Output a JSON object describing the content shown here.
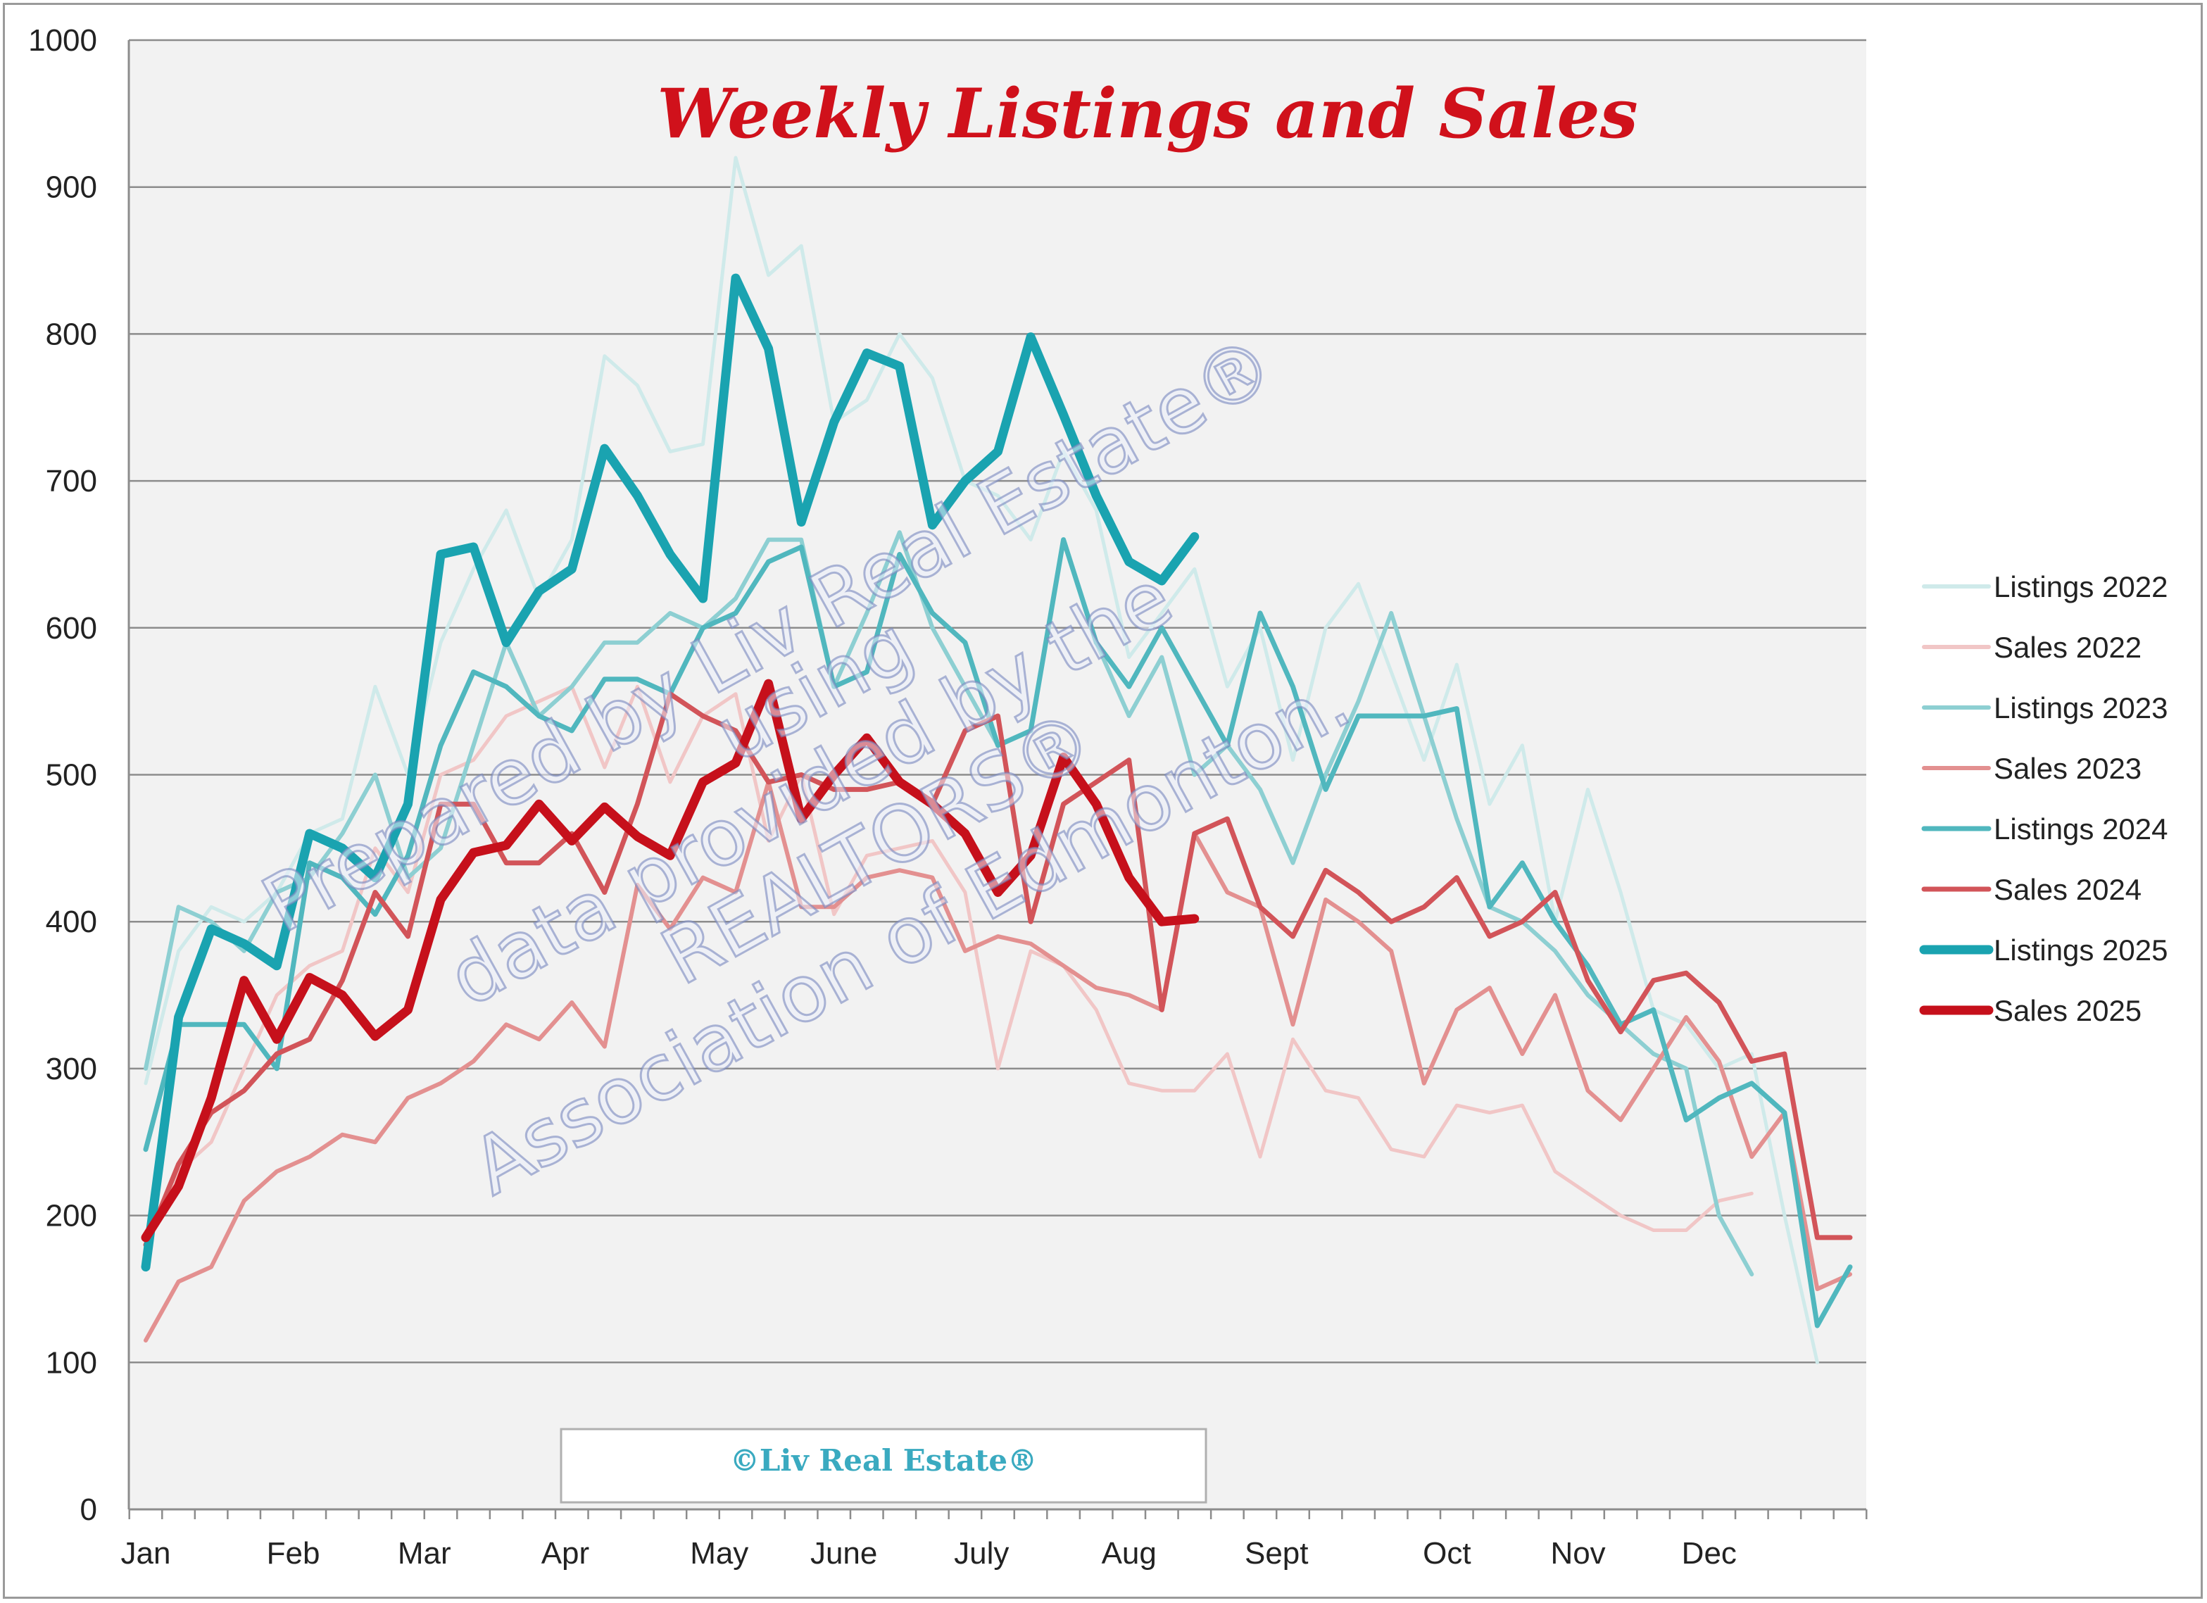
{
  "chart_data": {
    "type": "line",
    "title": "Weekly Listings and Sales",
    "ylim": [
      0,
      1000
    ],
    "yticks": [
      "0",
      "100",
      "200",
      "300",
      "400",
      "500",
      "600",
      "700",
      "800",
      "900",
      "1000"
    ],
    "grid": true,
    "legend_position": "right",
    "weeks": 53,
    "month_labels": [
      {
        "label": "Jan",
        "week": 1
      },
      {
        "label": "Feb",
        "week": 5.5
      },
      {
        "label": "Mar",
        "week": 9.5
      },
      {
        "label": "Apr",
        "week": 13.8
      },
      {
        "label": "May",
        "week": 18.5
      },
      {
        "label": "June",
        "week": 22.3
      },
      {
        "label": "July",
        "week": 26.5
      },
      {
        "label": "Aug",
        "week": 31
      },
      {
        "label": "Sept",
        "week": 35.5
      },
      {
        "label": "Oct",
        "week": 40.7
      },
      {
        "label": "Nov",
        "week": 44.7
      },
      {
        "label": "Dec",
        "week": 48.7
      }
    ],
    "series": [
      {
        "name": "Listings 2022",
        "color": "#cfeaea",
        "width": 5,
        "values": [
          290,
          380,
          410,
          400,
          420,
          460,
          470,
          560,
          500,
          590,
          640,
          680,
          620,
          660,
          785,
          765,
          720,
          725,
          920,
          840,
          860,
          740,
          755,
          800,
          770,
          700,
          690,
          660,
          720,
          680,
          580,
          610,
          640,
          560,
          600,
          510,
          600,
          630,
          570,
          510,
          575,
          480,
          520,
          400,
          490,
          420,
          340,
          330,
          300,
          310,
          200,
          100,
          null
        ]
      },
      {
        "name": "Sales 2022",
        "color": "#f1c6c6",
        "width": 5,
        "values": [
          185,
          230,
          250,
          300,
          350,
          370,
          380,
          450,
          420,
          500,
          510,
          540,
          550,
          560,
          505,
          560,
          495,
          540,
          555,
          455,
          500,
          405,
          445,
          450,
          455,
          420,
          300,
          380,
          370,
          340,
          290,
          285,
          285,
          310,
          240,
          320,
          285,
          280,
          245,
          240,
          275,
          270,
          275,
          230,
          215,
          200,
          190,
          190,
          210,
          215,
          null,
          null,
          null
        ]
      },
      {
        "name": "Listings 2023",
        "color": "#8dcfd2",
        "width": 6,
        "values": [
          300,
          410,
          400,
          380,
          420,
          430,
          460,
          500,
          430,
          450,
          520,
          590,
          540,
          560,
          590,
          590,
          610,
          600,
          620,
          660,
          660,
          560,
          610,
          665,
          600,
          560,
          520,
          530,
          660,
          590,
          540,
          580,
          500,
          520,
          490,
          440,
          500,
          550,
          610,
          540,
          470,
          410,
          400,
          380,
          350,
          330,
          310,
          300,
          200,
          160,
          null,
          null,
          null
        ]
      },
      {
        "name": "Sales 2023",
        "color": "#e39090",
        "width": 6,
        "values": [
          115,
          155,
          165,
          210,
          230,
          240,
          255,
          250,
          280,
          290,
          305,
          330,
          320,
          345,
          315,
          425,
          395,
          430,
          420,
          495,
          410,
          410,
          430,
          435,
          430,
          380,
          390,
          385,
          370,
          355,
          350,
          340,
          460,
          420,
          410,
          330,
          415,
          400,
          380,
          290,
          340,
          355,
          310,
          350,
          285,
          265,
          300,
          335,
          305,
          240,
          270,
          150,
          160
        ]
      },
      {
        "name": "Listings 2024",
        "color": "#50b7be",
        "width": 7,
        "values": [
          245,
          330,
          330,
          330,
          300,
          440,
          430,
          405,
          445,
          520,
          570,
          560,
          540,
          530,
          565,
          565,
          555,
          600,
          610,
          645,
          655,
          560,
          570,
          650,
          610,
          590,
          520,
          530,
          660,
          590,
          560,
          600,
          560,
          520,
          610,
          560,
          490,
          540,
          540,
          540,
          545,
          410,
          440,
          400,
          370,
          330,
          340,
          265,
          280,
          290,
          270,
          125,
          165
        ]
      },
      {
        "name": "Sales 2024",
        "color": "#d25459",
        "width": 7,
        "values": [
          180,
          235,
          270,
          285,
          310,
          320,
          360,
          420,
          390,
          480,
          480,
          440,
          440,
          460,
          420,
          480,
          555,
          540,
          530,
          495,
          500,
          490,
          490,
          495,
          480,
          530,
          540,
          400,
          480,
          495,
          510,
          340,
          460,
          470,
          410,
          390,
          435,
          420,
          400,
          410,
          430,
          390,
          400,
          420,
          360,
          325,
          360,
          365,
          345,
          305,
          310,
          185,
          185
        ]
      },
      {
        "name": "Listings 2025",
        "color": "#1aa3b0",
        "width": 13,
        "values": [
          165,
          335,
          395,
          385,
          370,
          460,
          450,
          430,
          480,
          650,
          655,
          590,
          625,
          640,
          722,
          690,
          650,
          620,
          838,
          790,
          672,
          740,
          787,
          778,
          670,
          700,
          720,
          798,
          745,
          690,
          645,
          632,
          662,
          null,
          null,
          null,
          null,
          null,
          null,
          null,
          null,
          null,
          null,
          null,
          null,
          null,
          null,
          null,
          null,
          null,
          null,
          null,
          null
        ]
      },
      {
        "name": "Sales 2025",
        "color": "#c6101b",
        "width": 13,
        "values": [
          185,
          220,
          280,
          360,
          320,
          362,
          350,
          322,
          340,
          415,
          447,
          452,
          480,
          455,
          478,
          458,
          445,
          495,
          508,
          562,
          470,
          500,
          525,
          495,
          480,
          460,
          420,
          445,
          512,
          480,
          430,
          400,
          402,
          null,
          null,
          null,
          null,
          null,
          null,
          null,
          null,
          null,
          null,
          null,
          null,
          null,
          null,
          null,
          null,
          null,
          null,
          null,
          null
        ]
      }
    ],
    "watermark": {
      "lines": [
        "Prepared by Liv Real Estate®",
        "using",
        "data provided by the",
        "REALTORS®",
        "Association of Edmonton."
      ]
    },
    "copyright_box": "©Liv Real Estate®"
  }
}
